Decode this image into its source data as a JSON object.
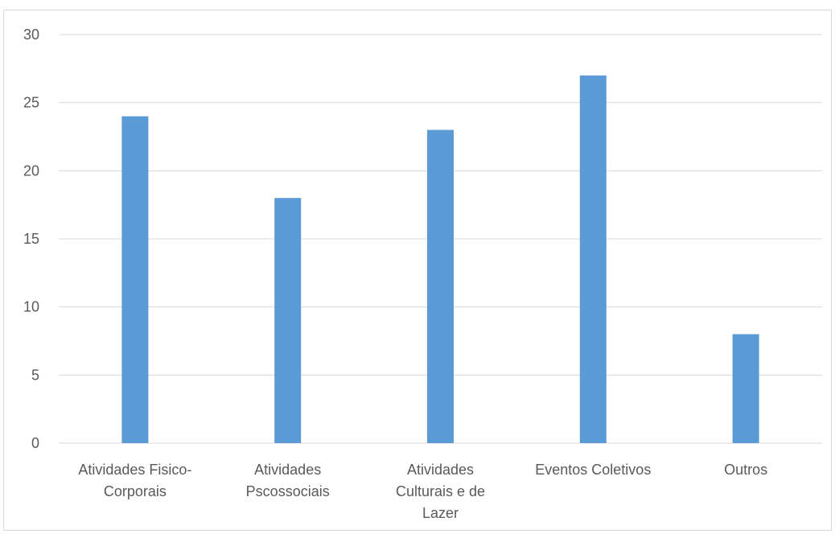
{
  "chart_data": {
    "type": "bar",
    "title": "",
    "xlabel": "",
    "ylabel": "",
    "categories": [
      [
        "Atividades Fisico-",
        "Corporais"
      ],
      [
        "Atividades",
        "Pscossociais"
      ],
      [
        "Atividades",
        "Culturais e de",
        "Lazer"
      ],
      [
        "Eventos Coletivos"
      ],
      [
        "Outros"
      ]
    ],
    "values": [
      24,
      18,
      23,
      27,
      8
    ],
    "ylim": [
      0,
      30
    ],
    "yticks": [
      0,
      5,
      10,
      15,
      20,
      25,
      30
    ],
    "grid": true,
    "legend": "none",
    "colors": {
      "bar": "#5b9bd5",
      "grid": "#d9d9d9",
      "axis": "#d9d9d9",
      "text": "#595959"
    }
  }
}
